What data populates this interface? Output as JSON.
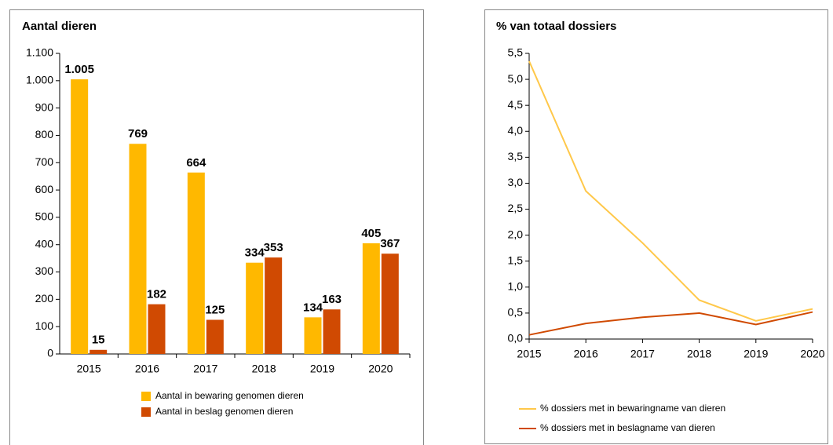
{
  "chart_data": [
    {
      "type": "bar",
      "title": "Aantal dieren",
      "categories": [
        "2015",
        "2016",
        "2017",
        "2018",
        "2019",
        "2020"
      ],
      "series": [
        {
          "name": "Aantal in bewaring genomen dieren",
          "color": "#ffb800",
          "values": [
            1005,
            769,
            664,
            334,
            134,
            405
          ],
          "value_labels": [
            "1.005",
            "769",
            "664",
            "334",
            "134",
            "405"
          ]
        },
        {
          "name": "Aantal in beslag genomen dieren",
          "color": "#d04a02",
          "values": [
            15,
            182,
            125,
            353,
            163,
            367
          ]
        }
      ],
      "ylim": [
        0,
        1100
      ],
      "yticks": [
        0,
        100,
        200,
        300,
        400,
        500,
        600,
        700,
        800,
        900,
        {
          "value": 1000,
          "label": "1.000"
        },
        {
          "value": 1100,
          "label": "1.100"
        }
      ],
      "grid": false
    },
    {
      "type": "line",
      "title": "% van totaal dossiers",
      "x": [
        2015,
        2016,
        2017,
        2018,
        2019,
        2020
      ],
      "series": [
        {
          "name": "% dossiers met in bewaringname  van dieren",
          "color": "#ffc84a",
          "values": [
            5.35,
            2.85,
            1.85,
            0.75,
            0.35,
            0.58
          ]
        },
        {
          "name": "% dossiers met in beslagname  van dieren",
          "color": "#d04a02",
          "values": [
            0.08,
            0.3,
            0.42,
            0.5,
            0.28,
            0.52
          ]
        }
      ],
      "xlim": [
        2015,
        2020
      ],
      "xticks": [
        2015,
        2016,
        2017,
        2018,
        2019,
        2020
      ],
      "ylim": [
        0,
        5.5
      ],
      "yticks": [
        {
          "value": 0,
          "label": "0,0"
        },
        {
          "value": 0.5,
          "label": "0,5"
        },
        {
          "value": 1,
          "label": "1,0"
        },
        {
          "value": 1.5,
          "label": "1,5"
        },
        {
          "value": 2,
          "label": "2,0"
        },
        {
          "value": 2.5,
          "label": "2,5"
        },
        {
          "value": 3,
          "label": "3,0"
        },
        {
          "value": 3.5,
          "label": "3,5"
        },
        {
          "value": 4,
          "label": "4,0"
        },
        {
          "value": 4.5,
          "label": "4,5"
        },
        {
          "value": 5,
          "label": "5,0"
        },
        {
          "value": 5.5,
          "label": "5,5"
        }
      ],
      "grid": false
    }
  ]
}
